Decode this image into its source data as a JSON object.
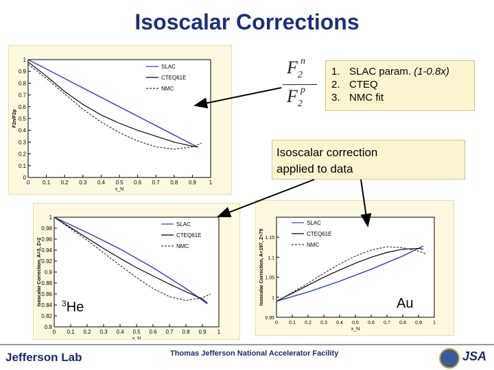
{
  "slide": {
    "title": "Isoscalar Corrections",
    "ratio_numerator": "F",
    "ratio_num_sub": "2",
    "ratio_num_sup": "n",
    "ratio_denominator": "F",
    "ratio_den_sub": "2",
    "ratio_den_sup": "p",
    "methods": [
      {
        "num": "1.",
        "text": "SLAC param.",
        "note": "(1-0.8x)"
      },
      {
        "num": "2.",
        "text": "CTEQ",
        "note": ""
      },
      {
        "num": "3.",
        "text": "NMC fit",
        "note": ""
      }
    ],
    "callout_text_line1": "Isoscalar correction",
    "callout_text_line2": "applied to data",
    "he_label_sup": "3",
    "he_label": "He",
    "au_label": "Au"
  },
  "footer": {
    "lab_name": "Jefferson Lab",
    "facility": "Thomas Jefferson National Accelerator Facility",
    "logo_text": "JSA"
  },
  "colors": {
    "title": "#1e2f7a",
    "slac": "#3344cc",
    "cteq": "#000000",
    "nmc": "#333333",
    "panel": "#fdf9e0"
  },
  "chart_data": [
    {
      "type": "line",
      "title": "",
      "xlabel": "x_N",
      "ylabel": "F2n/F2p",
      "xlim": [
        0,
        1
      ],
      "ylim": [
        0,
        1
      ],
      "xticks": [
        0,
        0.1,
        0.2,
        0.3,
        0.4,
        0.5,
        0.6,
        0.7,
        0.8,
        0.9,
        1
      ],
      "yticks": [
        0,
        0.1,
        0.2,
        0.3,
        0.4,
        0.5,
        0.6,
        0.7,
        0.8,
        0.9,
        1
      ],
      "legend": "top-right",
      "series": [
        {
          "name": "SLAC",
          "x": [
            0.0,
            0.2,
            0.4,
            0.6,
            0.8,
            0.93
          ],
          "y": [
            1.0,
            0.84,
            0.68,
            0.52,
            0.36,
            0.256
          ]
        },
        {
          "name": "CTEQ61E",
          "x": [
            0.0,
            0.1,
            0.2,
            0.3,
            0.4,
            0.5,
            0.6,
            0.7,
            0.8,
            0.9,
            0.93
          ],
          "y": [
            0.98,
            0.86,
            0.73,
            0.62,
            0.53,
            0.46,
            0.4,
            0.35,
            0.3,
            0.265,
            0.26
          ]
        },
        {
          "name": "NMC",
          "x": [
            0.0,
            0.1,
            0.2,
            0.3,
            0.4,
            0.5,
            0.6,
            0.7,
            0.8,
            0.9,
            0.95
          ],
          "y": [
            0.96,
            0.84,
            0.71,
            0.58,
            0.47,
            0.38,
            0.31,
            0.26,
            0.24,
            0.26,
            0.29
          ]
        }
      ]
    },
    {
      "type": "line",
      "title": "",
      "xlabel": "x_N",
      "ylabel": "Isoscalar Correction, A=3, Z=2",
      "xlim": [
        0,
        1
      ],
      "ylim": [
        0.8,
        1
      ],
      "xticks": [
        0,
        0.1,
        0.2,
        0.3,
        0.4,
        0.5,
        0.6,
        0.7,
        0.8,
        0.9,
        1
      ],
      "yticks": [
        0.8,
        0.82,
        0.84,
        0.86,
        0.88,
        0.9,
        0.92,
        0.94,
        0.96,
        0.98,
        1
      ],
      "legend": "top-right",
      "series": [
        {
          "name": "SLAC",
          "x": [
            0.0,
            0.2,
            0.4,
            0.6,
            0.8,
            0.93
          ],
          "y": [
            1.0,
            0.972,
            0.942,
            0.908,
            0.87,
            0.842
          ]
        },
        {
          "name": "CTEQ61E",
          "x": [
            0.0,
            0.1,
            0.2,
            0.3,
            0.4,
            0.5,
            0.6,
            0.7,
            0.8,
            0.9,
            0.93
          ],
          "y": [
            1.0,
            0.981,
            0.962,
            0.943,
            0.925,
            0.908,
            0.893,
            0.878,
            0.864,
            0.851,
            0.843
          ]
        },
        {
          "name": "NMC",
          "x": [
            0.0,
            0.1,
            0.2,
            0.3,
            0.4,
            0.5,
            0.6,
            0.7,
            0.8,
            0.9,
            0.95
          ],
          "y": [
            1.0,
            0.979,
            0.958,
            0.935,
            0.912,
            0.89,
            0.87,
            0.855,
            0.848,
            0.853,
            0.86
          ]
        }
      ]
    },
    {
      "type": "line",
      "title": "",
      "xlabel": "x_N",
      "ylabel": "Isoscalar Correction, A=197, Z=79",
      "xlim": [
        0,
        1
      ],
      "ylim": [
        0.95,
        1.2
      ],
      "xticks": [
        0,
        0.1,
        0.2,
        0.3,
        0.4,
        0.5,
        0.6,
        0.7,
        0.8,
        0.9,
        1
      ],
      "yticks": [
        0.95,
        1,
        1.05,
        1.1,
        1.15
      ],
      "yticklabels": [
        "0.95",
        "1",
        "1.05",
        "1.1",
        "1.15"
      ],
      "legend": "top-left",
      "series": [
        {
          "name": "SLAC",
          "x": [
            0.0,
            0.2,
            0.4,
            0.6,
            0.8,
            0.93
          ],
          "y": [
            0.99,
            1.013,
            1.04,
            1.07,
            1.103,
            1.128
          ]
        },
        {
          "name": "CTEQ61E",
          "x": [
            0.0,
            0.1,
            0.2,
            0.3,
            0.4,
            0.5,
            0.6,
            0.7,
            0.8,
            0.9,
            0.93
          ],
          "y": [
            0.99,
            1.01,
            1.03,
            1.05,
            1.068,
            1.085,
            1.1,
            1.112,
            1.12,
            1.122,
            1.12
          ]
        },
        {
          "name": "NMC",
          "x": [
            0.0,
            0.1,
            0.2,
            0.3,
            0.4,
            0.5,
            0.6,
            0.7,
            0.8,
            0.9,
            0.95
          ],
          "y": [
            0.99,
            1.012,
            1.035,
            1.06,
            1.083,
            1.103,
            1.118,
            1.126,
            1.124,
            1.115,
            1.108
          ]
        }
      ]
    }
  ]
}
